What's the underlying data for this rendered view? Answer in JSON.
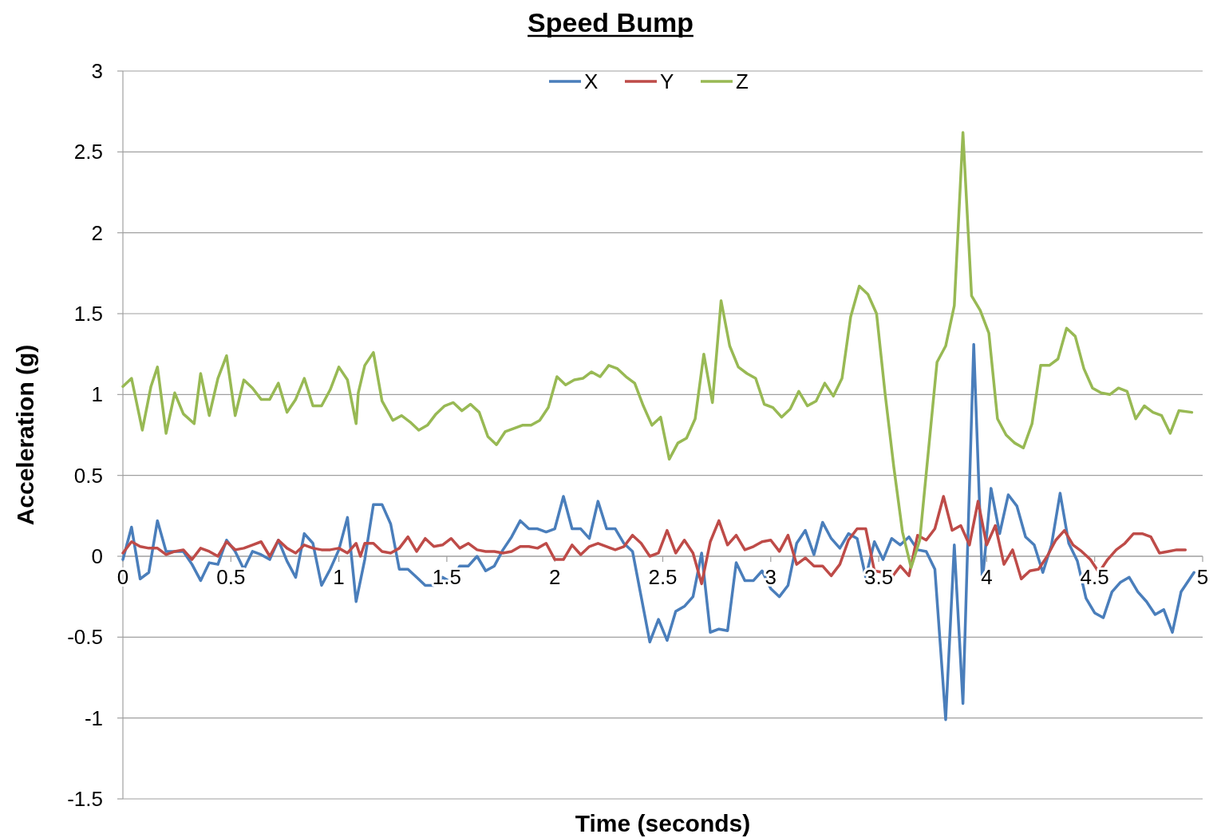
{
  "chart_data": {
    "type": "line",
    "title": "Speed Bump",
    "xlabel": "Time (seconds)",
    "ylabel": "Acceleration (g)",
    "xlim": [
      0,
      5
    ],
    "xticks": [
      0,
      0.5,
      1,
      1.5,
      2,
      2.5,
      3,
      3.5,
      4,
      4.5,
      5
    ],
    "ylim": [
      -1.5,
      3
    ],
    "yticks": [
      -1.5,
      -1,
      -0.5,
      0,
      0.5,
      1,
      1.5,
      2,
      2.5,
      3
    ],
    "grid": "y",
    "legend": "top",
    "marker": "none",
    "line_style": "solid",
    "series": [
      {
        "name": "X",
        "color": "#4a7ebb",
        "x": [
          0,
          0.04,
          0.08,
          0.12,
          0.16,
          0.2,
          0.24,
          0.28,
          0.32,
          0.36,
          0.4,
          0.44,
          0.48,
          0.52,
          0.56,
          0.6,
          0.64,
          0.68,
          0.72,
          0.76,
          0.8,
          0.84,
          0.88,
          0.92,
          0.96,
          1.0,
          1.04,
          1.08,
          1.12,
          1.16,
          1.2,
          1.24,
          1.28,
          1.32,
          1.36,
          1.4,
          1.44,
          1.48,
          1.52,
          1.56,
          1.6,
          1.64,
          1.68,
          1.72,
          1.76,
          1.8,
          1.84,
          1.88,
          1.92,
          1.96,
          2.0,
          2.04,
          2.08,
          2.12,
          2.16,
          2.2,
          2.24,
          2.28,
          2.32,
          2.36,
          2.4,
          2.44,
          2.48,
          2.52,
          2.56,
          2.6,
          2.64,
          2.68,
          2.72,
          2.76,
          2.8,
          2.84,
          2.88,
          2.92,
          2.96,
          3.0,
          3.04,
          3.08,
          3.12,
          3.16,
          3.2,
          3.24,
          3.28,
          3.32,
          3.36,
          3.4,
          3.44,
          3.48,
          3.52,
          3.56,
          3.6,
          3.64,
          3.68,
          3.72,
          3.76,
          3.81,
          3.85,
          3.89,
          3.94,
          3.98,
          4.02,
          4.06,
          4.1,
          4.14,
          4.18,
          4.22,
          4.26,
          4.3,
          4.34,
          4.38,
          4.42,
          4.46,
          4.5,
          4.54,
          4.58,
          4.62,
          4.66,
          4.7,
          4.74,
          4.78,
          4.82,
          4.86,
          4.9,
          4.96
        ],
        "values": [
          -0.02,
          0.18,
          -0.14,
          -0.1,
          0.22,
          0.03,
          0.03,
          0.03,
          -0.05,
          -0.15,
          -0.04,
          -0.05,
          0.1,
          0.03,
          -0.08,
          0.03,
          0.01,
          -0.02,
          0.1,
          -0.03,
          -0.13,
          0.14,
          0.08,
          -0.18,
          -0.08,
          0.04,
          0.24,
          -0.28,
          -0.02,
          0.32,
          0.32,
          0.2,
          -0.08,
          -0.08,
          -0.13,
          -0.18,
          -0.18,
          -0.13,
          -0.16,
          -0.06,
          -0.06,
          0.0,
          -0.09,
          -0.06,
          0.04,
          0.12,
          0.22,
          0.17,
          0.17,
          0.15,
          0.17,
          0.37,
          0.17,
          0.17,
          0.11,
          0.34,
          0.17,
          0.17,
          0.08,
          0.03,
          -0.25,
          -0.53,
          -0.39,
          -0.52,
          -0.34,
          -0.31,
          -0.25,
          0.02,
          -0.47,
          -0.45,
          -0.46,
          -0.04,
          -0.15,
          -0.15,
          -0.09,
          -0.2,
          -0.25,
          -0.18,
          0.08,
          0.16,
          0.01,
          0.21,
          0.11,
          0.05,
          0.14,
          0.11,
          -0.13,
          0.09,
          -0.02,
          0.11,
          0.07,
          0.12,
          0.04,
          0.03,
          -0.08,
          -1.01,
          0.07,
          -0.91,
          1.31,
          -0.16,
          0.42,
          0.14,
          0.38,
          0.31,
          0.12,
          0.07,
          -0.1,
          0.07,
          0.39,
          0.08,
          -0.03,
          -0.26,
          -0.35,
          -0.38,
          -0.22,
          -0.16,
          -0.13,
          -0.22,
          -0.28,
          -0.36,
          -0.33,
          -0.47,
          -0.22,
          -0.1
        ]
      },
      {
        "name": "Y",
        "color": "#be4b48",
        "x": [
          0,
          0.04,
          0.08,
          0.12,
          0.16,
          0.2,
          0.24,
          0.28,
          0.32,
          0.36,
          0.4,
          0.44,
          0.48,
          0.52,
          0.56,
          0.6,
          0.64,
          0.68,
          0.72,
          0.76,
          0.8,
          0.84,
          0.88,
          0.92,
          0.96,
          1.0,
          1.04,
          1.08,
          1.1,
          1.12,
          1.16,
          1.2,
          1.24,
          1.28,
          1.32,
          1.36,
          1.4,
          1.44,
          1.48,
          1.52,
          1.56,
          1.6,
          1.64,
          1.68,
          1.72,
          1.76,
          1.8,
          1.84,
          1.88,
          1.92,
          1.96,
          2.0,
          2.04,
          2.08,
          2.12,
          2.16,
          2.2,
          2.24,
          2.28,
          2.32,
          2.36,
          2.4,
          2.44,
          2.48,
          2.52,
          2.56,
          2.6,
          2.64,
          2.68,
          2.72,
          2.76,
          2.8,
          2.84,
          2.88,
          2.92,
          2.96,
          3.0,
          3.04,
          3.08,
          3.12,
          3.16,
          3.2,
          3.24,
          3.28,
          3.32,
          3.36,
          3.4,
          3.44,
          3.48,
          3.52,
          3.56,
          3.6,
          3.64,
          3.68,
          3.72,
          3.76,
          3.8,
          3.84,
          3.88,
          3.92,
          3.96,
          4.0,
          4.04,
          4.08,
          4.12,
          4.16,
          4.2,
          4.24,
          4.28,
          4.32,
          4.36,
          4.4,
          4.44,
          4.48,
          4.52,
          4.56,
          4.6,
          4.64,
          4.68,
          4.72,
          4.76,
          4.8,
          4.84,
          4.88,
          4.92
        ],
        "values": [
          0.02,
          0.09,
          0.06,
          0.05,
          0.05,
          0.01,
          0.03,
          0.04,
          -0.02,
          0.05,
          0.03,
          0.0,
          0.09,
          0.04,
          0.05,
          0.07,
          0.09,
          0.0,
          0.1,
          0.05,
          0.02,
          0.07,
          0.05,
          0.04,
          0.04,
          0.05,
          0.02,
          0.08,
          0.0,
          0.08,
          0.08,
          0.03,
          0.02,
          0.05,
          0.12,
          0.03,
          0.11,
          0.06,
          0.07,
          0.11,
          0.05,
          0.08,
          0.04,
          0.03,
          0.03,
          0.02,
          0.03,
          0.06,
          0.06,
          0.05,
          0.08,
          -0.02,
          -0.02,
          0.07,
          0.01,
          0.06,
          0.08,
          0.06,
          0.04,
          0.06,
          0.13,
          0.08,
          0.0,
          0.02,
          0.16,
          0.02,
          0.1,
          0.02,
          -0.17,
          0.09,
          0.22,
          0.07,
          0.13,
          0.04,
          0.06,
          0.09,
          0.1,
          0.03,
          0.13,
          -0.05,
          -0.01,
          -0.06,
          -0.06,
          -0.12,
          -0.05,
          0.1,
          0.17,
          0.17,
          -0.09,
          -0.1,
          -0.13,
          -0.06,
          -0.12,
          0.13,
          0.1,
          0.17,
          0.37,
          0.16,
          0.19,
          0.07,
          0.34,
          0.07,
          0.19,
          -0.05,
          0.04,
          -0.14,
          -0.09,
          -0.08,
          0.0,
          0.1,
          0.16,
          0.07,
          0.03,
          -0.02,
          -0.1,
          -0.02,
          0.04,
          0.08,
          0.14,
          0.14,
          0.12,
          0.02,
          0.03,
          0.04,
          0.04
        ]
      },
      {
        "name": "Z",
        "color": "#98b954",
        "x": [
          0,
          0.04,
          0.09,
          0.13,
          0.16,
          0.2,
          0.24,
          0.28,
          0.33,
          0.36,
          0.4,
          0.44,
          0.48,
          0.52,
          0.56,
          0.6,
          0.64,
          0.68,
          0.72,
          0.76,
          0.8,
          0.84,
          0.88,
          0.92,
          0.96,
          1.0,
          1.04,
          1.08,
          1.09,
          1.12,
          1.16,
          1.2,
          1.25,
          1.29,
          1.33,
          1.37,
          1.41,
          1.45,
          1.49,
          1.53,
          1.57,
          1.61,
          1.65,
          1.69,
          1.73,
          1.77,
          1.81,
          1.85,
          1.89,
          1.93,
          1.97,
          2.01,
          2.05,
          2.09,
          2.13,
          2.17,
          2.21,
          2.25,
          2.29,
          2.33,
          2.37,
          2.41,
          2.45,
          2.49,
          2.53,
          2.57,
          2.61,
          2.65,
          2.69,
          2.73,
          2.77,
          2.81,
          2.85,
          2.89,
          2.93,
          2.97,
          3.01,
          3.05,
          3.09,
          3.13,
          3.17,
          3.21,
          3.25,
          3.29,
          3.33,
          3.37,
          3.41,
          3.45,
          3.49,
          3.53,
          3.57,
          3.61,
          3.65,
          3.69,
          3.73,
          3.77,
          3.81,
          3.85,
          3.89,
          3.93,
          3.97,
          4.01,
          4.05,
          4.09,
          4.13,
          4.17,
          4.21,
          4.25,
          4.29,
          4.33,
          4.37,
          4.41,
          4.45,
          4.49,
          4.53,
          4.57,
          4.61,
          4.65,
          4.69,
          4.73,
          4.77,
          4.81,
          4.85,
          4.89,
          4.95
        ],
        "values": [
          1.05,
          1.1,
          0.78,
          1.05,
          1.17,
          0.76,
          1.01,
          0.88,
          0.82,
          1.13,
          0.87,
          1.1,
          1.24,
          0.87,
          1.09,
          1.04,
          0.97,
          0.97,
          1.07,
          0.89,
          0.97,
          1.1,
          0.93,
          0.93,
          1.03,
          1.17,
          1.09,
          0.82,
          1.01,
          1.18,
          1.26,
          0.96,
          0.84,
          0.87,
          0.83,
          0.78,
          0.81,
          0.88,
          0.93,
          0.95,
          0.9,
          0.94,
          0.89,
          0.74,
          0.69,
          0.77,
          0.79,
          0.81,
          0.81,
          0.84,
          0.92,
          1.11,
          1.06,
          1.09,
          1.1,
          1.14,
          1.11,
          1.18,
          1.16,
          1.11,
          1.07,
          0.93,
          0.81,
          0.86,
          0.6,
          0.7,
          0.73,
          0.85,
          1.25,
          0.95,
          1.58,
          1.3,
          1.17,
          1.13,
          1.1,
          0.94,
          0.92,
          0.86,
          0.91,
          1.02,
          0.93,
          0.96,
          1.07,
          0.99,
          1.1,
          1.48,
          1.67,
          1.62,
          1.5,
          1.0,
          0.55,
          0.15,
          -0.07,
          0.1,
          0.65,
          1.2,
          1.3,
          1.55,
          2.62,
          1.61,
          1.52,
          1.38,
          0.85,
          0.75,
          0.7,
          0.67,
          0.82,
          1.18,
          1.18,
          1.22,
          1.41,
          1.36,
          1.16,
          1.04,
          1.01,
          1.0,
          1.04,
          1.02,
          0.85,
          0.93,
          0.89,
          0.87,
          0.76,
          0.9,
          0.89
        ]
      }
    ]
  }
}
